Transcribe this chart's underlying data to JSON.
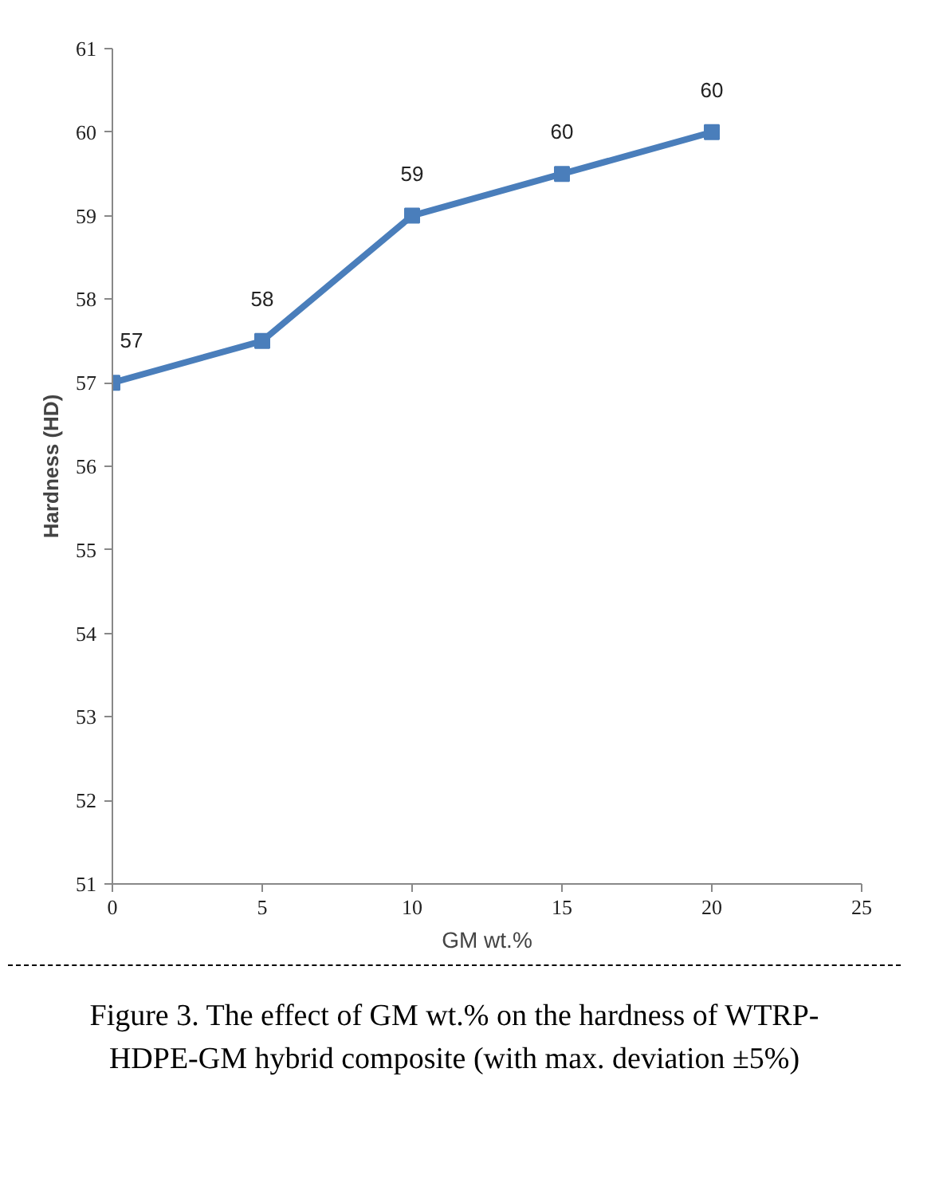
{
  "chart_data": {
    "type": "line",
    "xlabel": "GM wt.%",
    "ylabel": "Hardness (HD)",
    "x": [
      0,
      5,
      10,
      15,
      20
    ],
    "series": [
      {
        "color": "#4a7ebb",
        "values": [
          57,
          57.5,
          59,
          59.5,
          60
        ],
        "value_labels": [
          "57",
          "58",
          "59",
          "60",
          "60"
        ]
      }
    ],
    "xlim": [
      0,
      25
    ],
    "xticks": [
      0,
      5,
      10,
      15,
      20,
      25
    ],
    "ylim": [
      51,
      61
    ],
    "yticks": [
      51,
      52,
      53,
      54,
      55,
      56,
      57,
      58,
      59,
      60,
      61
    ],
    "grid": false,
    "marker": "square",
    "line_style": "solid",
    "annotations": [
      "Figure 3. The effect of GM wt.% on the hardness of WTRP-HDPE-GM hybrid composite (with max. deviation ±5%)"
    ]
  }
}
